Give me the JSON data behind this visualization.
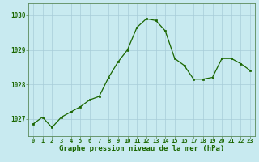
{
  "x": [
    0,
    1,
    2,
    3,
    4,
    5,
    6,
    7,
    8,
    9,
    10,
    11,
    12,
    13,
    14,
    15,
    16,
    17,
    18,
    19,
    20,
    21,
    22,
    23
  ],
  "y": [
    1026.85,
    1027.05,
    1026.75,
    1027.05,
    1027.2,
    1027.35,
    1027.55,
    1027.65,
    1028.2,
    1028.65,
    1029.0,
    1029.65,
    1029.9,
    1029.85,
    1029.55,
    1028.75,
    1028.55,
    1028.15,
    1028.15,
    1028.2,
    1028.75,
    1028.75,
    1028.6,
    1028.4
  ],
  "line_color": "#1a6600",
  "marker_color": "#1a6600",
  "bg_color": "#c8eaf0",
  "grid_color": "#a8ccd8",
  "border_color": "#5a8a5a",
  "xlabel": "Graphe pression niveau de la mer (hPa)",
  "xlabel_color": "#1a6600",
  "tick_color": "#1a6600",
  "ylim": [
    1026.5,
    1030.35
  ],
  "yticks": [
    1027,
    1028,
    1029,
    1030
  ],
  "xlim": [
    -0.5,
    23.5
  ],
  "xticks": [
    0,
    1,
    2,
    3,
    4,
    5,
    6,
    7,
    8,
    9,
    10,
    11,
    12,
    13,
    14,
    15,
    16,
    17,
    18,
    19,
    20,
    21,
    22,
    23
  ]
}
